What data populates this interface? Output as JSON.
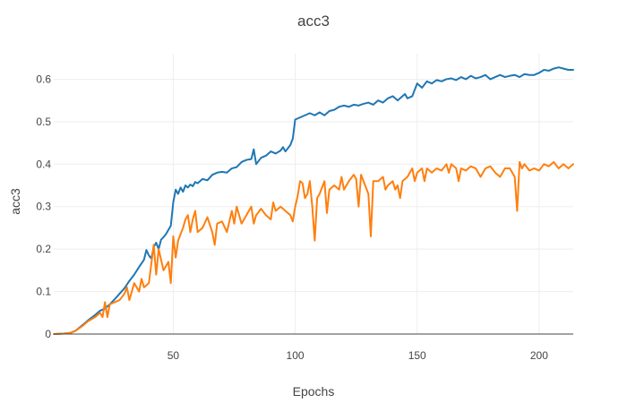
{
  "chart_data": {
    "type": "line",
    "title": "acc3",
    "xlabel": "Epochs",
    "ylabel": "acc3",
    "xlim": [
      1,
      214
    ],
    "ylim": [
      0,
      0.66
    ],
    "xticks": [
      50,
      100,
      150,
      200
    ],
    "yticks": [
      0,
      0.1,
      0.2,
      0.3,
      0.4,
      0.5,
      0.6
    ],
    "grid": true,
    "legend": "none",
    "series": [
      {
        "color": "#1f77b4",
        "points": [
          [
            1,
            0.0
          ],
          [
            5,
            0.001
          ],
          [
            8,
            0.003
          ],
          [
            10,
            0.008
          ],
          [
            13,
            0.022
          ],
          [
            15,
            0.032
          ],
          [
            18,
            0.045
          ],
          [
            20,
            0.055
          ],
          [
            22,
            0.06
          ],
          [
            24,
            0.07
          ],
          [
            26,
            0.082
          ],
          [
            28,
            0.095
          ],
          [
            30,
            0.108
          ],
          [
            32,
            0.125
          ],
          [
            34,
            0.14
          ],
          [
            36,
            0.158
          ],
          [
            38,
            0.175
          ],
          [
            39,
            0.198
          ],
          [
            40,
            0.185
          ],
          [
            41,
            0.178
          ],
          [
            42,
            0.205
          ],
          [
            43,
            0.215
          ],
          [
            44,
            0.2
          ],
          [
            45,
            0.222
          ],
          [
            46,
            0.228
          ],
          [
            47,
            0.235
          ],
          [
            48,
            0.245
          ],
          [
            49,
            0.255
          ],
          [
            50,
            0.31
          ],
          [
            51,
            0.34
          ],
          [
            52,
            0.33
          ],
          [
            53,
            0.345
          ],
          [
            54,
            0.335
          ],
          [
            55,
            0.35
          ],
          [
            56,
            0.345
          ],
          [
            57,
            0.352
          ],
          [
            58,
            0.348
          ],
          [
            59,
            0.358
          ],
          [
            60,
            0.355
          ],
          [
            62,
            0.365
          ],
          [
            64,
            0.362
          ],
          [
            66,
            0.375
          ],
          [
            68,
            0.38
          ],
          [
            70,
            0.382
          ],
          [
            72,
            0.38
          ],
          [
            74,
            0.39
          ],
          [
            76,
            0.393
          ],
          [
            78,
            0.405
          ],
          [
            80,
            0.41
          ],
          [
            82,
            0.412
          ],
          [
            83,
            0.435
          ],
          [
            84,
            0.4
          ],
          [
            86,
            0.415
          ],
          [
            88,
            0.42
          ],
          [
            90,
            0.43
          ],
          [
            92,
            0.425
          ],
          [
            94,
            0.432
          ],
          [
            95,
            0.44
          ],
          [
            96,
            0.43
          ],
          [
            98,
            0.445
          ],
          [
            99,
            0.46
          ],
          [
            100,
            0.505
          ],
          [
            102,
            0.51
          ],
          [
            104,
            0.515
          ],
          [
            106,
            0.52
          ],
          [
            108,
            0.515
          ],
          [
            110,
            0.522
          ],
          [
            112,
            0.515
          ],
          [
            114,
            0.525
          ],
          [
            116,
            0.528
          ],
          [
            118,
            0.535
          ],
          [
            120,
            0.538
          ],
          [
            122,
            0.535
          ],
          [
            124,
            0.54
          ],
          [
            126,
            0.538
          ],
          [
            128,
            0.542
          ],
          [
            130,
            0.545
          ],
          [
            132,
            0.54
          ],
          [
            134,
            0.55
          ],
          [
            136,
            0.545
          ],
          [
            138,
            0.555
          ],
          [
            140,
            0.56
          ],
          [
            142,
            0.55
          ],
          [
            144,
            0.56
          ],
          [
            145,
            0.565
          ],
          [
            146,
            0.555
          ],
          [
            148,
            0.56
          ],
          [
            150,
            0.59
          ],
          [
            152,
            0.58
          ],
          [
            154,
            0.595
          ],
          [
            156,
            0.59
          ],
          [
            158,
            0.598
          ],
          [
            160,
            0.595
          ],
          [
            162,
            0.6
          ],
          [
            164,
            0.602
          ],
          [
            166,
            0.598
          ],
          [
            168,
            0.605
          ],
          [
            170,
            0.6
          ],
          [
            172,
            0.608
          ],
          [
            174,
            0.602
          ],
          [
            176,
            0.605
          ],
          [
            178,
            0.61
          ],
          [
            180,
            0.6
          ],
          [
            182,
            0.605
          ],
          [
            184,
            0.61
          ],
          [
            186,
            0.605
          ],
          [
            188,
            0.608
          ],
          [
            190,
            0.61
          ],
          [
            192,
            0.605
          ],
          [
            194,
            0.612
          ],
          [
            196,
            0.61
          ],
          [
            198,
            0.61
          ],
          [
            200,
            0.615
          ],
          [
            202,
            0.622
          ],
          [
            204,
            0.62
          ],
          [
            206,
            0.625
          ],
          [
            208,
            0.628
          ],
          [
            210,
            0.625
          ],
          [
            212,
            0.622
          ],
          [
            214,
            0.622
          ]
        ]
      },
      {
        "color": "#ff7f0e",
        "points": [
          [
            1,
            0.0
          ],
          [
            5,
            0.001
          ],
          [
            8,
            0.003
          ],
          [
            10,
            0.008
          ],
          [
            13,
            0.02
          ],
          [
            15,
            0.03
          ],
          [
            18,
            0.04
          ],
          [
            20,
            0.05
          ],
          [
            21,
            0.04
          ],
          [
            22,
            0.075
          ],
          [
            23,
            0.04
          ],
          [
            24,
            0.07
          ],
          [
            26,
            0.075
          ],
          [
            28,
            0.08
          ],
          [
            30,
            0.095
          ],
          [
            31,
            0.11
          ],
          [
            32,
            0.08
          ],
          [
            34,
            0.12
          ],
          [
            36,
            0.1
          ],
          [
            37,
            0.13
          ],
          [
            38,
            0.11
          ],
          [
            40,
            0.12
          ],
          [
            42,
            0.21
          ],
          [
            43,
            0.14
          ],
          [
            44,
            0.2
          ],
          [
            45,
            0.175
          ],
          [
            46,
            0.15
          ],
          [
            48,
            0.17
          ],
          [
            49,
            0.12
          ],
          [
            50,
            0.23
          ],
          [
            51,
            0.18
          ],
          [
            52,
            0.22
          ],
          [
            54,
            0.25
          ],
          [
            55,
            0.27
          ],
          [
            56,
            0.28
          ],
          [
            57,
            0.24
          ],
          [
            58,
            0.27
          ],
          [
            59,
            0.29
          ],
          [
            60,
            0.24
          ],
          [
            62,
            0.25
          ],
          [
            64,
            0.275
          ],
          [
            66,
            0.24
          ],
          [
            67,
            0.21
          ],
          [
            68,
            0.26
          ],
          [
            70,
            0.265
          ],
          [
            72,
            0.24
          ],
          [
            74,
            0.29
          ],
          [
            75,
            0.26
          ],
          [
            76,
            0.3
          ],
          [
            78,
            0.26
          ],
          [
            80,
            0.28
          ],
          [
            82,
            0.3
          ],
          [
            83,
            0.26
          ],
          [
            84,
            0.28
          ],
          [
            86,
            0.295
          ],
          [
            88,
            0.28
          ],
          [
            90,
            0.27
          ],
          [
            91,
            0.31
          ],
          [
            92,
            0.29
          ],
          [
            94,
            0.3
          ],
          [
            96,
            0.29
          ],
          [
            98,
            0.28
          ],
          [
            99,
            0.265
          ],
          [
            100,
            0.3
          ],
          [
            101,
            0.325
          ],
          [
            102,
            0.36
          ],
          [
            103,
            0.355
          ],
          [
            104,
            0.32
          ],
          [
            105,
            0.33
          ],
          [
            106,
            0.36
          ],
          [
            107,
            0.3
          ],
          [
            108,
            0.22
          ],
          [
            109,
            0.32
          ],
          [
            110,
            0.33
          ],
          [
            112,
            0.36
          ],
          [
            113,
            0.285
          ],
          [
            114,
            0.34
          ],
          [
            116,
            0.35
          ],
          [
            118,
            0.34
          ],
          [
            119,
            0.37
          ],
          [
            120,
            0.34
          ],
          [
            122,
            0.36
          ],
          [
            124,
            0.375
          ],
          [
            125,
            0.365
          ],
          [
            126,
            0.3
          ],
          [
            127,
            0.375
          ],
          [
            128,
            0.36
          ],
          [
            130,
            0.33
          ],
          [
            131,
            0.23
          ],
          [
            132,
            0.36
          ],
          [
            134,
            0.36
          ],
          [
            136,
            0.37
          ],
          [
            137,
            0.34
          ],
          [
            138,
            0.35
          ],
          [
            140,
            0.36
          ],
          [
            141,
            0.34
          ],
          [
            142,
            0.35
          ],
          [
            143,
            0.32
          ],
          [
            144,
            0.36
          ],
          [
            146,
            0.37
          ],
          [
            148,
            0.39
          ],
          [
            149,
            0.36
          ],
          [
            150,
            0.38
          ],
          [
            152,
            0.39
          ],
          [
            153,
            0.36
          ],
          [
            154,
            0.39
          ],
          [
            156,
            0.38
          ],
          [
            158,
            0.39
          ],
          [
            160,
            0.385
          ],
          [
            162,
            0.4
          ],
          [
            163,
            0.38
          ],
          [
            164,
            0.4
          ],
          [
            166,
            0.39
          ],
          [
            167,
            0.36
          ],
          [
            168,
            0.39
          ],
          [
            170,
            0.385
          ],
          [
            172,
            0.395
          ],
          [
            174,
            0.39
          ],
          [
            176,
            0.37
          ],
          [
            178,
            0.39
          ],
          [
            180,
            0.395
          ],
          [
            182,
            0.38
          ],
          [
            184,
            0.37
          ],
          [
            186,
            0.39
          ],
          [
            188,
            0.39
          ],
          [
            190,
            0.37
          ],
          [
            191,
            0.29
          ],
          [
            192,
            0.405
          ],
          [
            193,
            0.39
          ],
          [
            194,
            0.4
          ],
          [
            196,
            0.385
          ],
          [
            198,
            0.39
          ],
          [
            200,
            0.385
          ],
          [
            202,
            0.4
          ],
          [
            204,
            0.395
          ],
          [
            206,
            0.405
          ],
          [
            208,
            0.39
          ],
          [
            210,
            0.4
          ],
          [
            212,
            0.39
          ],
          [
            214,
            0.4
          ]
        ]
      }
    ]
  }
}
